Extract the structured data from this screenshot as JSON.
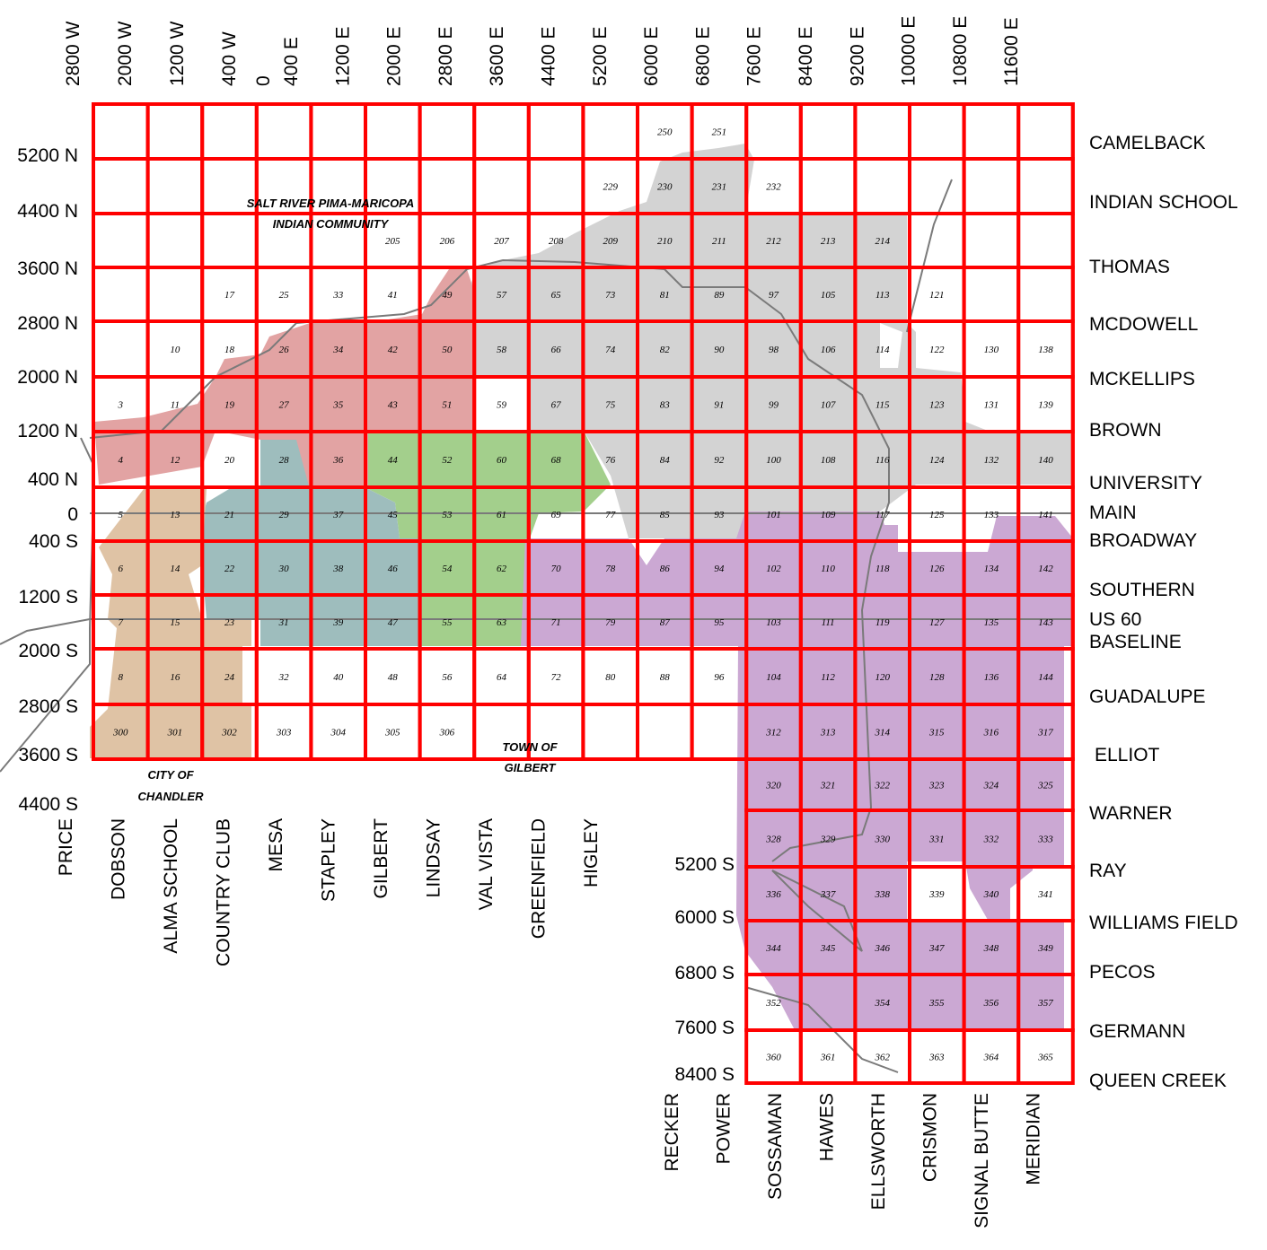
{
  "colors": {
    "grid": "#ff0000",
    "salt_river": "#e2a3a3",
    "gray": "#d3d3d3",
    "green": "#a3cf8c",
    "teal": "#9ebdbd",
    "tan": "#dfc3a5",
    "purple": "#cba8d3",
    "road": "#7a7a7a"
  },
  "top_labels": [
    "2800 W",
    "2000 W",
    "1200 W",
    "400 W",
    "0",
    "400 E",
    "1200 E",
    "2000 E",
    "2800 E",
    "3600 E",
    "4400 E",
    "5200 E",
    "6000 E",
    "6800 E",
    "7600 E",
    "8400 E",
    "9200 E",
    "10000 E",
    "10800 E",
    "11600 E"
  ],
  "left_labels": [
    "5200 N",
    "4400 N",
    "3600 N",
    "2800 N",
    "2000 N",
    "1200 N",
    "400 N",
    "0",
    "400 S",
    "1200 S",
    "2000 S",
    "2800 S",
    "3600 S",
    "4400 S"
  ],
  "left_labels_lower": [
    "5200 S",
    "6000 S",
    "6800 S",
    "7600 S",
    "8400 S"
  ],
  "right_labels": [
    "CAMELBACK",
    "INDIAN SCHOOL",
    "THOMAS",
    "MCDOWELL",
    "MCKELLIPS",
    "BROWN",
    "UNIVERSITY",
    "MAIN",
    "BROADWAY",
    "SOUTHERN",
    "US 60",
    "BASELINE",
    "GUADALUPE",
    "ELLIOT",
    "WARNER",
    "RAY",
    "WILLIAMS FIELD",
    "PECOS",
    "GERMANN",
    "QUEEN CREEK"
  ],
  "bottom_labels": [
    "PRICE",
    "DOBSON",
    "ALMA SCHOOL",
    "COUNTRY CLUB",
    "MESA",
    "STAPLEY",
    "GILBERT",
    "LINDSAY",
    "VAL VISTA",
    "GREENFIELD",
    "HIGLEY"
  ],
  "bottom_labels_lower": [
    "RECKER",
    "POWER",
    "SOSSAMAN",
    "HAWES",
    "ELLSWORTH",
    "CRISMON",
    "SIGNAL BUTTE",
    "MERIDIAN"
  ],
  "area_labels": {
    "salt_river_1": "SALT RIVER PIMA-MARICOPA",
    "salt_river_2": "INDIAN COMMUNITY",
    "gilbert_1": "TOWN OF",
    "gilbert_2": "GILBERT",
    "chandler_1": "CITY OF",
    "chandler_2": "CHANDLER"
  },
  "cells": [
    {
      "n": "250",
      "c": 10,
      "r": 0
    },
    {
      "n": "251",
      "c": 11,
      "r": 0
    },
    {
      "n": "229",
      "c": 9,
      "r": 1
    },
    {
      "n": "230",
      "c": 10,
      "r": 1
    },
    {
      "n": "231",
      "c": 11,
      "r": 1
    },
    {
      "n": "232",
      "c": 12,
      "r": 1
    },
    {
      "n": "205",
      "c": 5,
      "r": 2
    },
    {
      "n": "206",
      "c": 6,
      "r": 2
    },
    {
      "n": "207",
      "c": 7,
      "r": 2
    },
    {
      "n": "208",
      "c": 8,
      "r": 2
    },
    {
      "n": "209",
      "c": 9,
      "r": 2
    },
    {
      "n": "210",
      "c": 10,
      "r": 2
    },
    {
      "n": "211",
      "c": 11,
      "r": 2
    },
    {
      "n": "212",
      "c": 12,
      "r": 2
    },
    {
      "n": "213",
      "c": 13,
      "r": 2
    },
    {
      "n": "214",
      "c": 14,
      "r": 2
    },
    {
      "n": "17",
      "c": 2,
      "r": 3
    },
    {
      "n": "25",
      "c": 3,
      "r": 3
    },
    {
      "n": "33",
      "c": 4,
      "r": 3
    },
    {
      "n": "41",
      "c": 5,
      "r": 3
    },
    {
      "n": "49",
      "c": 6,
      "r": 3
    },
    {
      "n": "57",
      "c": 7,
      "r": 3
    },
    {
      "n": "65",
      "c": 8,
      "r": 3
    },
    {
      "n": "73",
      "c": 9,
      "r": 3
    },
    {
      "n": "81",
      "c": 10,
      "r": 3
    },
    {
      "n": "89",
      "c": 11,
      "r": 3
    },
    {
      "n": "97",
      "c": 12,
      "r": 3
    },
    {
      "n": "105",
      "c": 13,
      "r": 3
    },
    {
      "n": "113",
      "c": 14,
      "r": 3
    },
    {
      "n": "121",
      "c": 15,
      "r": 3
    },
    {
      "n": "10",
      "c": 1,
      "r": 4
    },
    {
      "n": "18",
      "c": 2,
      "r": 4
    },
    {
      "n": "26",
      "c": 3,
      "r": 4
    },
    {
      "n": "34",
      "c": 4,
      "r": 4
    },
    {
      "n": "42",
      "c": 5,
      "r": 4
    },
    {
      "n": "50",
      "c": 6,
      "r": 4
    },
    {
      "n": "58",
      "c": 7,
      "r": 4
    },
    {
      "n": "66",
      "c": 8,
      "r": 4
    },
    {
      "n": "74",
      "c": 9,
      "r": 4
    },
    {
      "n": "82",
      "c": 10,
      "r": 4
    },
    {
      "n": "90",
      "c": 11,
      "r": 4
    },
    {
      "n": "98",
      "c": 12,
      "r": 4
    },
    {
      "n": "106",
      "c": 13,
      "r": 4
    },
    {
      "n": "114",
      "c": 14,
      "r": 4
    },
    {
      "n": "122",
      "c": 15,
      "r": 4
    },
    {
      "n": "130",
      "c": 16,
      "r": 4
    },
    {
      "n": "138",
      "c": 17,
      "r": 4
    },
    {
      "n": "3",
      "c": 0,
      "r": 5
    },
    {
      "n": "11",
      "c": 1,
      "r": 5
    },
    {
      "n": "19",
      "c": 2,
      "r": 5
    },
    {
      "n": "27",
      "c": 3,
      "r": 5
    },
    {
      "n": "35",
      "c": 4,
      "r": 5
    },
    {
      "n": "43",
      "c": 5,
      "r": 5
    },
    {
      "n": "51",
      "c": 6,
      "r": 5
    },
    {
      "n": "59",
      "c": 7,
      "r": 5
    },
    {
      "n": "67",
      "c": 8,
      "r": 5
    },
    {
      "n": "75",
      "c": 9,
      "r": 5
    },
    {
      "n": "83",
      "c": 10,
      "r": 5
    },
    {
      "n": "91",
      "c": 11,
      "r": 5
    },
    {
      "n": "99",
      "c": 12,
      "r": 5
    },
    {
      "n": "107",
      "c": 13,
      "r": 5
    },
    {
      "n": "115",
      "c": 14,
      "r": 5
    },
    {
      "n": "123",
      "c": 15,
      "r": 5
    },
    {
      "n": "131",
      "c": 16,
      "r": 5
    },
    {
      "n": "139",
      "c": 17,
      "r": 5
    },
    {
      "n": "4",
      "c": 0,
      "r": 6
    },
    {
      "n": "12",
      "c": 1,
      "r": 6
    },
    {
      "n": "20",
      "c": 2,
      "r": 6
    },
    {
      "n": "28",
      "c": 3,
      "r": 6
    },
    {
      "n": "36",
      "c": 4,
      "r": 6
    },
    {
      "n": "44",
      "c": 5,
      "r": 6
    },
    {
      "n": "52",
      "c": 6,
      "r": 6
    },
    {
      "n": "60",
      "c": 7,
      "r": 6
    },
    {
      "n": "68",
      "c": 8,
      "r": 6
    },
    {
      "n": "76",
      "c": 9,
      "r": 6
    },
    {
      "n": "84",
      "c": 10,
      "r": 6
    },
    {
      "n": "92",
      "c": 11,
      "r": 6
    },
    {
      "n": "100",
      "c": 12,
      "r": 6
    },
    {
      "n": "108",
      "c": 13,
      "r": 6
    },
    {
      "n": "116",
      "c": 14,
      "r": 6
    },
    {
      "n": "124",
      "c": 15,
      "r": 6
    },
    {
      "n": "132",
      "c": 16,
      "r": 6
    },
    {
      "n": "140",
      "c": 17,
      "r": 6
    },
    {
      "n": "5",
      "c": 0,
      "r": 7
    },
    {
      "n": "13",
      "c": 1,
      "r": 7
    },
    {
      "n": "21",
      "c": 2,
      "r": 7
    },
    {
      "n": "29",
      "c": 3,
      "r": 7
    },
    {
      "n": "37",
      "c": 4,
      "r": 7
    },
    {
      "n": "45",
      "c": 5,
      "r": 7
    },
    {
      "n": "53",
      "c": 6,
      "r": 7
    },
    {
      "n": "61",
      "c": 7,
      "r": 7
    },
    {
      "n": "69",
      "c": 8,
      "r": 7
    },
    {
      "n": "77",
      "c": 9,
      "r": 7
    },
    {
      "n": "85",
      "c": 10,
      "r": 7
    },
    {
      "n": "93",
      "c": 11,
      "r": 7
    },
    {
      "n": "101",
      "c": 12,
      "r": 7
    },
    {
      "n": "109",
      "c": 13,
      "r": 7
    },
    {
      "n": "117",
      "c": 14,
      "r": 7
    },
    {
      "n": "125",
      "c": 15,
      "r": 7
    },
    {
      "n": "133",
      "c": 16,
      "r": 7
    },
    {
      "n": "141",
      "c": 17,
      "r": 7
    },
    {
      "n": "6",
      "c": 0,
      "r": 8
    },
    {
      "n": "14",
      "c": 1,
      "r": 8
    },
    {
      "n": "22",
      "c": 2,
      "r": 8
    },
    {
      "n": "30",
      "c": 3,
      "r": 8
    },
    {
      "n": "38",
      "c": 4,
      "r": 8
    },
    {
      "n": "46",
      "c": 5,
      "r": 8
    },
    {
      "n": "54",
      "c": 6,
      "r": 8
    },
    {
      "n": "62",
      "c": 7,
      "r": 8
    },
    {
      "n": "70",
      "c": 8,
      "r": 8
    },
    {
      "n": "78",
      "c": 9,
      "r": 8
    },
    {
      "n": "86",
      "c": 10,
      "r": 8
    },
    {
      "n": "94",
      "c": 11,
      "r": 8
    },
    {
      "n": "102",
      "c": 12,
      "r": 8
    },
    {
      "n": "110",
      "c": 13,
      "r": 8
    },
    {
      "n": "118",
      "c": 14,
      "r": 8
    },
    {
      "n": "126",
      "c": 15,
      "r": 8
    },
    {
      "n": "134",
      "c": 16,
      "r": 8
    },
    {
      "n": "142",
      "c": 17,
      "r": 8
    },
    {
      "n": "7",
      "c": 0,
      "r": 9
    },
    {
      "n": "15",
      "c": 1,
      "r": 9
    },
    {
      "n": "23",
      "c": 2,
      "r": 9
    },
    {
      "n": "31",
      "c": 3,
      "r": 9
    },
    {
      "n": "39",
      "c": 4,
      "r": 9
    },
    {
      "n": "47",
      "c": 5,
      "r": 9
    },
    {
      "n": "55",
      "c": 6,
      "r": 9
    },
    {
      "n": "63",
      "c": 7,
      "r": 9
    },
    {
      "n": "71",
      "c": 8,
      "r": 9
    },
    {
      "n": "79",
      "c": 9,
      "r": 9
    },
    {
      "n": "87",
      "c": 10,
      "r": 9
    },
    {
      "n": "95",
      "c": 11,
      "r": 9
    },
    {
      "n": "103",
      "c": 12,
      "r": 9
    },
    {
      "n": "111",
      "c": 13,
      "r": 9
    },
    {
      "n": "119",
      "c": 14,
      "r": 9
    },
    {
      "n": "127",
      "c": 15,
      "r": 9
    },
    {
      "n": "135",
      "c": 16,
      "r": 9
    },
    {
      "n": "143",
      "c": 17,
      "r": 9
    },
    {
      "n": "8",
      "c": 0,
      "r": 10
    },
    {
      "n": "16",
      "c": 1,
      "r": 10
    },
    {
      "n": "24",
      "c": 2,
      "r": 10
    },
    {
      "n": "32",
      "c": 3,
      "r": 10
    },
    {
      "n": "40",
      "c": 4,
      "r": 10
    },
    {
      "n": "48",
      "c": 5,
      "r": 10
    },
    {
      "n": "56",
      "c": 6,
      "r": 10
    },
    {
      "n": "64",
      "c": 7,
      "r": 10
    },
    {
      "n": "72",
      "c": 8,
      "r": 10
    },
    {
      "n": "80",
      "c": 9,
      "r": 10
    },
    {
      "n": "88",
      "c": 10,
      "r": 10
    },
    {
      "n": "96",
      "c": 11,
      "r": 10
    },
    {
      "n": "104",
      "c": 12,
      "r": 10
    },
    {
      "n": "112",
      "c": 13,
      "r": 10
    },
    {
      "n": "120",
      "c": 14,
      "r": 10
    },
    {
      "n": "128",
      "c": 15,
      "r": 10
    },
    {
      "n": "136",
      "c": 16,
      "r": 10
    },
    {
      "n": "144",
      "c": 17,
      "r": 10
    },
    {
      "n": "300",
      "c": 0,
      "r": 11
    },
    {
      "n": "301",
      "c": 1,
      "r": 11
    },
    {
      "n": "302",
      "c": 2,
      "r": 11
    },
    {
      "n": "303",
      "c": 3,
      "r": 11
    },
    {
      "n": "304",
      "c": 4,
      "r": 11
    },
    {
      "n": "305",
      "c": 5,
      "r": 11
    },
    {
      "n": "306",
      "c": 6,
      "r": 11
    },
    {
      "n": "312",
      "c": 12,
      "r": 11
    },
    {
      "n": "313",
      "c": 13,
      "r": 11
    },
    {
      "n": "314",
      "c": 14,
      "r": 11
    },
    {
      "n": "315",
      "c": 15,
      "r": 11
    },
    {
      "n": "316",
      "c": 16,
      "r": 11
    },
    {
      "n": "317",
      "c": 17,
      "r": 11
    },
    {
      "n": "320",
      "c": 12,
      "r": 12
    },
    {
      "n": "321",
      "c": 13,
      "r": 12
    },
    {
      "n": "322",
      "c": 14,
      "r": 12
    },
    {
      "n": "323",
      "c": 15,
      "r": 12
    },
    {
      "n": "324",
      "c": 16,
      "r": 12
    },
    {
      "n": "325",
      "c": 17,
      "r": 12
    },
    {
      "n": "328",
      "c": 12,
      "r": 13
    },
    {
      "n": "329",
      "c": 13,
      "r": 13
    },
    {
      "n": "330",
      "c": 14,
      "r": 13
    },
    {
      "n": "331",
      "c": 15,
      "r": 13
    },
    {
      "n": "332",
      "c": 16,
      "r": 13
    },
    {
      "n": "333",
      "c": 17,
      "r": 13
    },
    {
      "n": "336",
      "c": 12,
      "r": 14
    },
    {
      "n": "337",
      "c": 13,
      "r": 14
    },
    {
      "n": "338",
      "c": 14,
      "r": 14
    },
    {
      "n": "339",
      "c": 15,
      "r": 14
    },
    {
      "n": "340",
      "c": 16,
      "r": 14
    },
    {
      "n": "341",
      "c": 17,
      "r": 14
    },
    {
      "n": "344",
      "c": 12,
      "r": 15
    },
    {
      "n": "345",
      "c": 13,
      "r": 15
    },
    {
      "n": "346",
      "c": 14,
      "r": 15
    },
    {
      "n": "347",
      "c": 15,
      "r": 15
    },
    {
      "n": "348",
      "c": 16,
      "r": 15
    },
    {
      "n": "349",
      "c": 17,
      "r": 15
    },
    {
      "n": "352",
      "c": 12,
      "r": 16
    },
    {
      "n": "354",
      "c": 14,
      "r": 16
    },
    {
      "n": "355",
      "c": 15,
      "r": 16
    },
    {
      "n": "356",
      "c": 16,
      "r": 16
    },
    {
      "n": "357",
      "c": 17,
      "r": 16
    },
    {
      "n": "360",
      "c": 12,
      "r": 17
    },
    {
      "n": "361",
      "c": 13,
      "r": 17
    },
    {
      "n": "362",
      "c": 14,
      "r": 17
    },
    {
      "n": "363",
      "c": 15,
      "r": 17
    },
    {
      "n": "364",
      "c": 16,
      "r": 17
    },
    {
      "n": "365",
      "c": 17,
      "r": 17
    }
  ]
}
